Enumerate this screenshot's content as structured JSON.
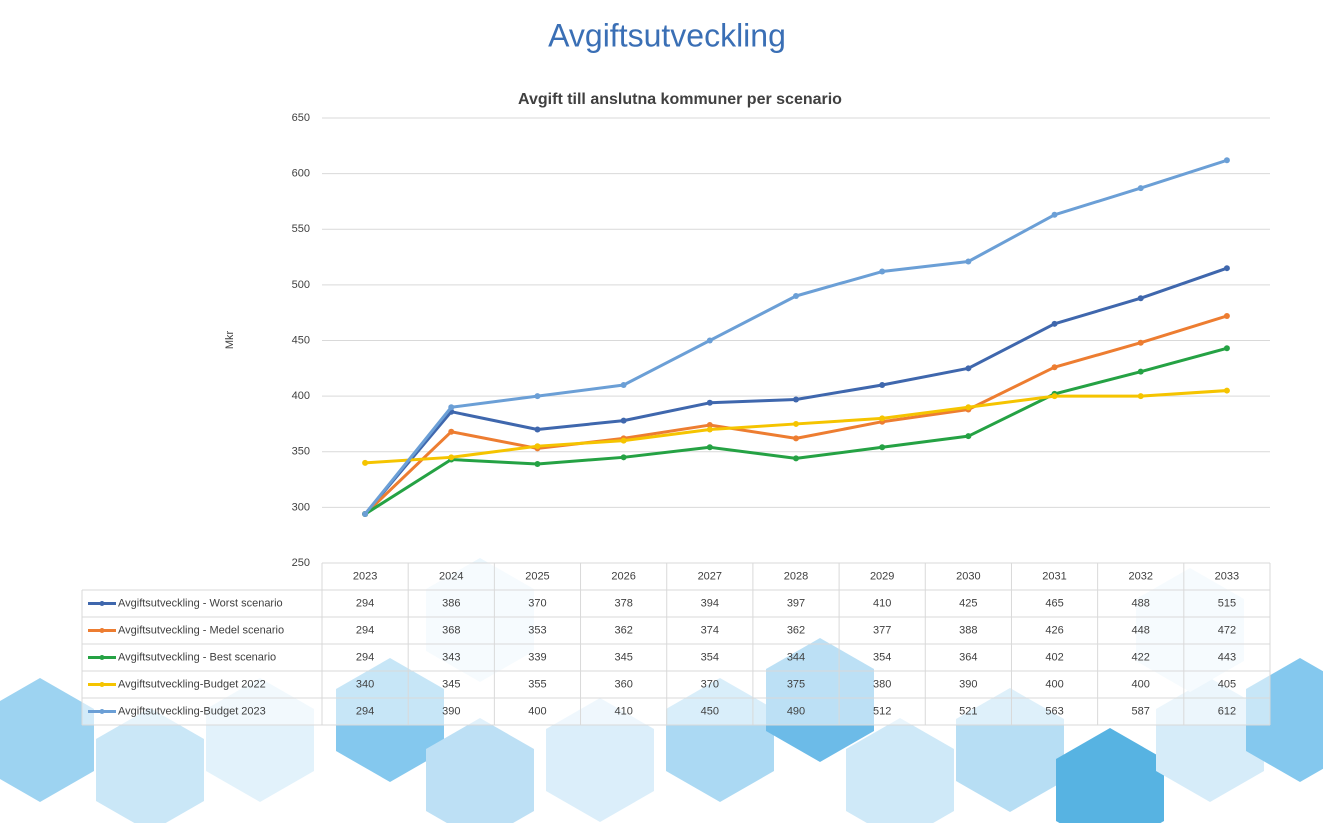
{
  "chart_data": {
    "type": "line",
    "title": "Avgiftsutveckling",
    "subtitle": "Avgift till anslutna kommuner per scenario",
    "y_label": "Mkr",
    "categories": [
      "2023",
      "2024",
      "2025",
      "2026",
      "2027",
      "2028",
      "2029",
      "2030",
      "2031",
      "2032",
      "2033"
    ],
    "series": [
      {
        "name": "Avgiftsutveckling - Worst scenario",
        "color": "#3f67ad",
        "values": [
          294,
          386,
          370,
          378,
          394,
          397,
          410,
          425,
          465,
          488,
          515
        ]
      },
      {
        "name": "Avgiftsutveckling - Medel scenario",
        "color": "#ed7d31",
        "values": [
          294,
          368,
          353,
          362,
          374,
          362,
          377,
          388,
          426,
          448,
          472
        ]
      },
      {
        "name": "Avgiftsutveckling - Best scenario",
        "color": "#25a244",
        "values": [
          294,
          343,
          339,
          345,
          354,
          344,
          354,
          364,
          402,
          422,
          443
        ]
      },
      {
        "name": "Avgiftsutveckling-Budget 2022",
        "color": "#f5c400",
        "values": [
          340,
          345,
          355,
          360,
          370,
          375,
          380,
          390,
          400,
          400,
          405
        ]
      },
      {
        "name": "Avgiftsutveckling-Budget 2023",
        "color": "#6b9fd6",
        "values": [
          294,
          390,
          400,
          410,
          450,
          490,
          512,
          521,
          563,
          587,
          612
        ]
      }
    ],
    "ylim": [
      250,
      650
    ],
    "yticks": [
      250,
      300,
      350,
      400,
      450,
      500,
      550,
      600,
      650
    ],
    "grid": true
  }
}
